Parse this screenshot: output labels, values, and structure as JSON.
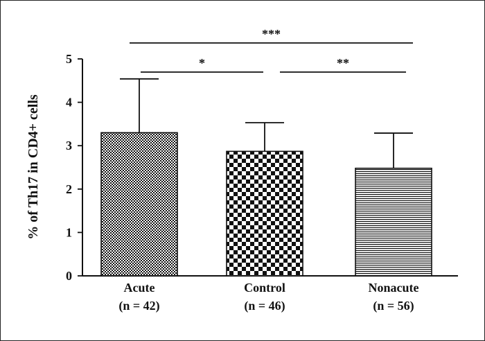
{
  "chart_data": {
    "type": "bar",
    "title": "",
    "ylabel": "% of Th17 in CD4+ cells",
    "xlabel": "",
    "ylim": [
      0,
      5
    ],
    "yticks": [
      "0",
      "1",
      "2",
      "3",
      "4",
      "5"
    ],
    "categories": [
      {
        "name": "Acute",
        "n_label": "(n = 42)"
      },
      {
        "name": "Control",
        "n_label": "(n = 46)"
      },
      {
        "name": "Nonacute",
        "n_label": "(n = 56)"
      }
    ],
    "values": [
      3.3,
      2.87,
      2.48
    ],
    "errors_upper": [
      1.24,
      0.66,
      0.81
    ],
    "bar_patterns": [
      "fine-checker",
      "checker",
      "horizontal-stripes"
    ],
    "significance": [
      {
        "from": 0,
        "to": 1,
        "label": "*"
      },
      {
        "from": 1,
        "to": 2,
        "label": "**"
      },
      {
        "from": 0,
        "to": 2,
        "label": "***"
      }
    ],
    "grid": false,
    "legend": "none"
  }
}
